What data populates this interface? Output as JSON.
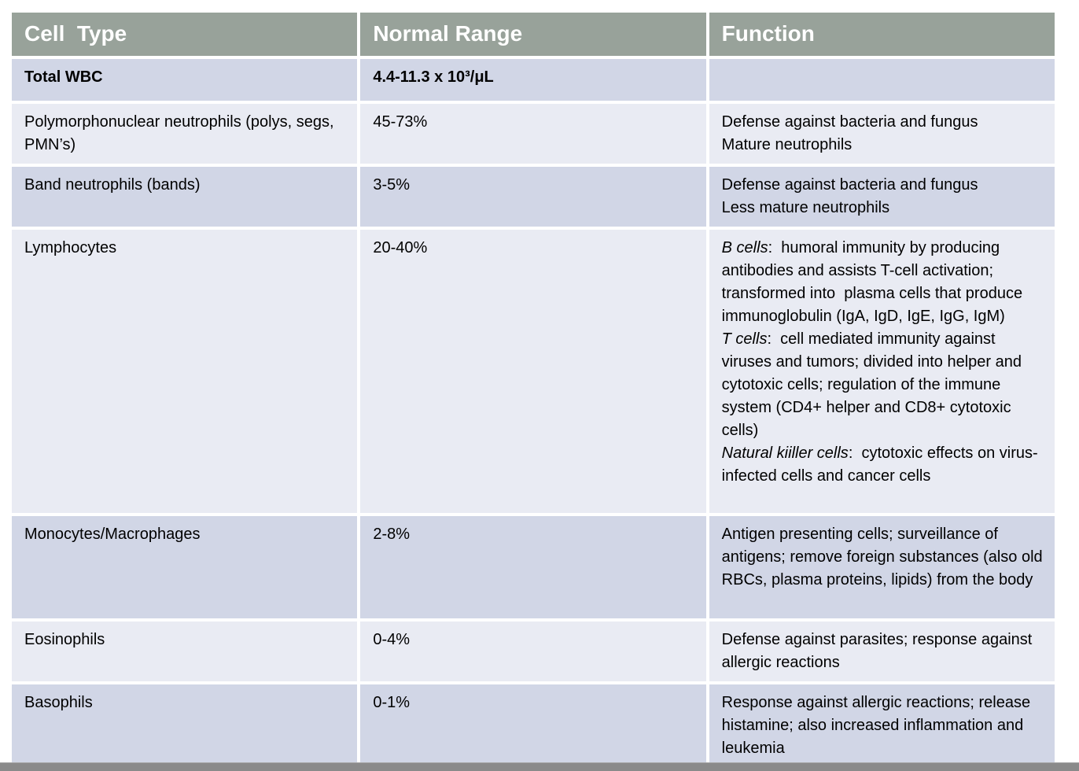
{
  "table": {
    "columns": [
      {
        "label": "Cell  Type"
      },
      {
        "label": "Normal Range"
      },
      {
        "label": "Function"
      }
    ],
    "rows": [
      {
        "cell_type": "Total WBC",
        "normal_range": "4.4-11.3 x 10³/μL",
        "bold": true,
        "function_parts": []
      },
      {
        "cell_type": "Polymorphonuclear neutrophils (polys, segs, PMN’s)",
        "normal_range": "45-73%",
        "bold": false,
        "function_parts": [
          {
            "lead": "",
            "text": "Defense against bacteria and fungus"
          },
          {
            "lead": "",
            "text": "Mature neutrophils"
          }
        ]
      },
      {
        "cell_type": "Band neutrophils (bands)",
        "normal_range": "3-5%",
        "bold": false,
        "function_parts": [
          {
            "lead": "",
            "text": "Defense against bacteria and fungus"
          },
          {
            "lead": "",
            "text": "Less mature neutrophils"
          }
        ]
      },
      {
        "cell_type": "Lymphocytes",
        "normal_range": "20-40%",
        "bold": false,
        "function_parts": [
          {
            "lead": "B cells",
            "text": ":  humoral immunity by producing antibodies and assists T-cell activation; transformed into  plasma cells that produce immunoglobulin (IgA, IgD, IgE, IgG, IgM)"
          },
          {
            "lead": "T cells",
            "text": ":  cell mediated immunity against viruses and tumors; divided into helper and cytotoxic cells; regulation of the immune system (CD4+ helper and CD8+ cytotoxic cells)"
          },
          {
            "lead": "Natural kiiller cells",
            "text": ":  cytotoxic effects on virus-infected cells and cancer cells"
          }
        ]
      },
      {
        "cell_type": "Monocytes/Macrophages",
        "normal_range": "2-8%",
        "bold": false,
        "function_parts": [
          {
            "lead": "",
            "text": "Antigen presenting cells; surveillance of antigens; remove foreign substances (also old RBCs, plasma proteins, lipids) from the body"
          }
        ]
      },
      {
        "cell_type": "Eosinophils",
        "normal_range": "0-4%",
        "bold": false,
        "function_parts": [
          {
            "lead": "",
            "text": "Defense against parasites; response against allergic reactions"
          }
        ]
      },
      {
        "cell_type": "Basophils",
        "normal_range": "0-1%",
        "bold": false,
        "function_parts": [
          {
            "lead": "",
            "text": "Response against allergic reactions; release histamine; also increased inflammation and leukemia"
          }
        ]
      }
    ]
  },
  "colors": {
    "header_bg": "#98A29A",
    "header_text": "#FFFFFF",
    "row_dark": "#D1D6E6",
    "row_light": "#E9EBF3",
    "body_text": "#000000",
    "bottom_bar": "#8A8A8A",
    "page_bg": "#FFFFFF"
  }
}
